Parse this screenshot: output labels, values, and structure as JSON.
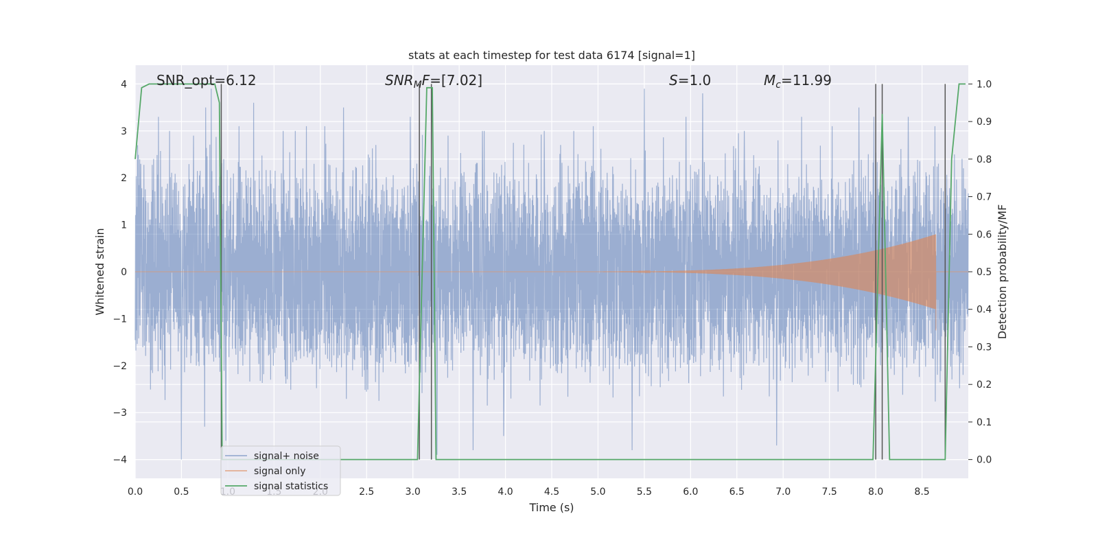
{
  "chart_data": {
    "type": "line",
    "title": "stats at each timestep for test data 6174 [signal=1]",
    "xlabel": "Time (s)",
    "ylabel": "Whitened strain",
    "ylabel_right": "Detection probability/MF",
    "xlim": [
      0.0,
      9.0
    ],
    "ylim": [
      -4.4,
      4.4
    ],
    "ylim_right": [
      -0.05,
      1.05
    ],
    "x_ticks": [
      "0.0",
      "0.5",
      "1.0",
      "1.5",
      "2.0",
      "2.5",
      "3.0",
      "3.5",
      "4.0",
      "4.5",
      "5.0",
      "5.5",
      "6.0",
      "6.5",
      "7.0",
      "7.5",
      "8.0",
      "8.5"
    ],
    "y_ticks": [
      "4",
      "3",
      "2",
      "1",
      "0",
      "−1",
      "−2",
      "−3",
      "−4"
    ],
    "y_right_ticks": [
      "1.0",
      "0.9",
      "0.8",
      "0.7",
      "0.6",
      "0.5",
      "0.4",
      "0.3",
      "0.2",
      "0.1",
      "0.0"
    ],
    "grid": true,
    "legend_position": "lower-left",
    "colors": {
      "signal_noise": "#4c72b0",
      "signal_only": "#dd8452",
      "signal_statistics": "#55a868",
      "vlines": "#555555",
      "background": "#eaeaf2",
      "grid": "#ffffff"
    },
    "annotations": {
      "snr_opt": "SNR_opt=6.12",
      "snr_mf_prefix": "SNR",
      "snr_mf_sub": "M",
      "snr_mf_suffix": "F=[7.02]",
      "s_letter": "S",
      "s_value": "=1.0",
      "mc_letter": "M",
      "mc_sub": "c",
      "mc_value": "=11.99"
    },
    "series": [
      {
        "name": "signal+ noise",
        "description_values": "noise envelope",
        "noise_std": 1.3,
        "noise_peaks": [
          {
            "x": 0.06,
            "y": 2.3
          },
          {
            "x": 0.25,
            "y": 3.3
          },
          {
            "x": 0.37,
            "y": 3.0
          },
          {
            "x": 0.5,
            "y": -4.0
          },
          {
            "x": 0.63,
            "y": 2.9
          },
          {
            "x": 0.75,
            "y": -3.3
          },
          {
            "x": 0.76,
            "y": 3.5
          },
          {
            "x": 0.82,
            "y": 3.9
          },
          {
            "x": 0.98,
            "y": -3.6
          },
          {
            "x": 1.12,
            "y": 3.1
          },
          {
            "x": 1.28,
            "y": 3.6
          },
          {
            "x": 1.6,
            "y": 3.0
          },
          {
            "x": 1.85,
            "y": 3.1
          },
          {
            "x": 2.05,
            "y": 3.1
          },
          {
            "x": 2.25,
            "y": 3.5
          },
          {
            "x": 2.6,
            "y": 2.7
          },
          {
            "x": 2.97,
            "y": 3.3
          },
          {
            "x": 3.26,
            "y": -3.9
          },
          {
            "x": 3.38,
            "y": 2.9
          },
          {
            "x": 3.65,
            "y": -3.8
          },
          {
            "x": 3.75,
            "y": 3.0
          },
          {
            "x": 3.98,
            "y": -3.5
          },
          {
            "x": 4.42,
            "y": 3.0
          },
          {
            "x": 4.95,
            "y": 3.1
          },
          {
            "x": 5.37,
            "y": -3.8
          },
          {
            "x": 5.5,
            "y": 3.9
          },
          {
            "x": 5.95,
            "y": 3.3
          },
          {
            "x": 6.13,
            "y": 3.8
          },
          {
            "x": 6.58,
            "y": 3.0
          },
          {
            "x": 6.93,
            "y": -3.7
          },
          {
            "x": 7.2,
            "y": 3.3
          },
          {
            "x": 7.53,
            "y": 3.1
          },
          {
            "x": 7.82,
            "y": 3.5
          },
          {
            "x": 7.98,
            "y": 3.3
          },
          {
            "x": 8.35,
            "y": 3.3
          },
          {
            "x": 8.64,
            "y": 3.1
          },
          {
            "x": 8.85,
            "y": 2.5
          }
        ]
      },
      {
        "name": "signal only",
        "chirp_start": 4.6,
        "chirp_end": 8.65,
        "chirp_peak_amplitude": 0.8
      },
      {
        "name": "signal statistics",
        "axis": "right",
        "x": [
          0.0,
          0.07,
          0.15,
          0.86,
          0.91,
          0.94,
          0.97,
          3.05,
          3.15,
          3.21,
          3.25,
          5.0,
          6.8,
          7.97,
          8.07,
          8.15,
          8.2,
          8.75,
          8.82,
          8.9,
          8.97
        ],
        "y": [
          0.8,
          0.99,
          1.0,
          1.0,
          0.95,
          0.0,
          0.0,
          0.0,
          0.99,
          0.99,
          0.0,
          0.0,
          0.0,
          0.0,
          0.92,
          0.0,
          0.0,
          0.0,
          0.8,
          1.0,
          1.0
        ]
      }
    ],
    "vertical_lines_x": [
      0.93,
      3.07,
      3.2,
      8.0,
      8.07,
      8.75
    ]
  }
}
